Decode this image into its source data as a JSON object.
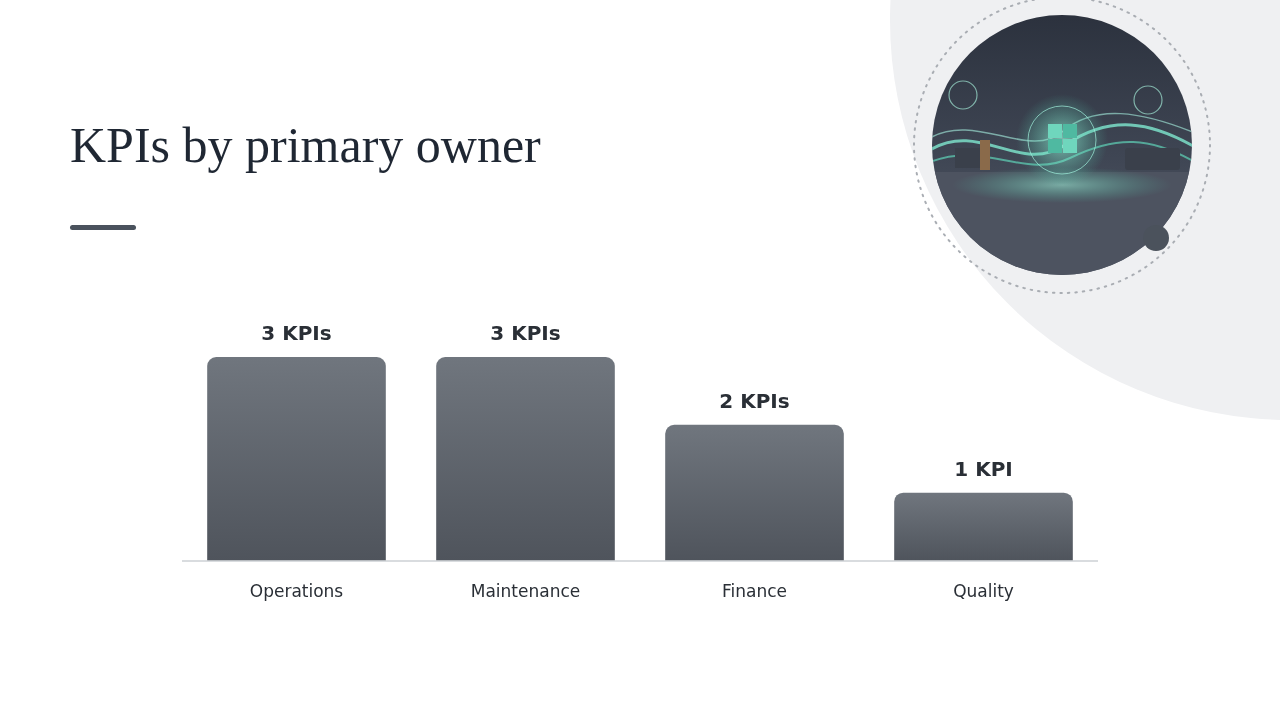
{
  "chart_data": {
    "type": "bar",
    "title": "KPIs by primary owner",
    "categories": [
      "Operations",
      "Maintenance",
      "Finance",
      "Quality"
    ],
    "values": [
      3,
      3,
      2,
      1
    ],
    "value_labels": [
      "3 KPIs",
      "3 KPIs",
      "2 KPIs",
      "1 KPI"
    ],
    "data_labels": true,
    "color": "#5d636c",
    "ylim": [
      0,
      3
    ],
    "grid": false,
    "tick_labels": "x"
  }
}
